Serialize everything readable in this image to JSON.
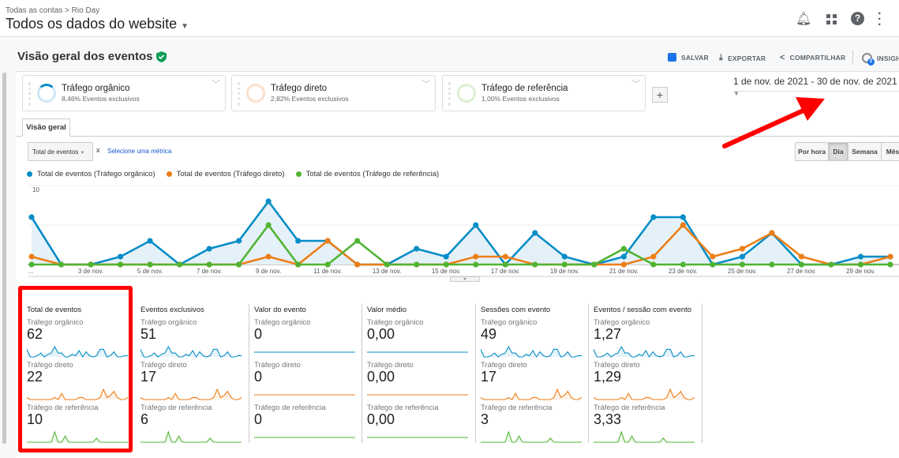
{
  "header": {
    "breadcrumb_root": "Todas as contas",
    "breadcrumb_sep": ">",
    "breadcrumb_account": "Rio Day",
    "view_title": "Todos os dados do website"
  },
  "page": {
    "title": "Visão geral dos eventos",
    "actions": {
      "save": "SALVAR",
      "export": "EXPORTAR",
      "share": "COMPARTILHAR",
      "insights": "INSIGHTS",
      "insights_badge": "2"
    }
  },
  "segments": [
    {
      "name": "Tráfego orgânico",
      "sub": "8,46% Eventos exclusivos",
      "color": "#058dc7"
    },
    {
      "name": "Tráfego direto",
      "sub": "2,82% Eventos exclusivos",
      "color": "#ed7e17"
    },
    {
      "name": "Tráfego de referência",
      "sub": "1,00% Eventos exclusivos",
      "color": "#50b432"
    }
  ],
  "add_segment": "+",
  "date_range": "1 de nov. de 2021 - 30 de nov. de 2021",
  "tab": "Visão geral",
  "metric_select": "Total de eventos",
  "metric_remove": "x",
  "metric_add": "Selecione uma métrica",
  "periods": [
    "Por hora",
    "Dia",
    "Semana",
    "Mês"
  ],
  "chart_data": {
    "type": "line",
    "ylim": [
      0,
      10
    ],
    "yticks": [
      "10",
      "5"
    ],
    "x": [
      1,
      2,
      3,
      4,
      5,
      6,
      7,
      8,
      9,
      10,
      11,
      12,
      13,
      14,
      15,
      16,
      17,
      18,
      19,
      20,
      21,
      22,
      23,
      24,
      25,
      26,
      27,
      28,
      29,
      30
    ],
    "xticklabels": [
      "...",
      "3 de nov.",
      "5 de nov.",
      "7 de nov.",
      "9 de nov.",
      "11 de nov.",
      "13 de nov.",
      "15 de nov.",
      "17 de nov.",
      "19 de nov.",
      "21 de nov.",
      "23 de nov.",
      "25 de nov.",
      "27 de nov.",
      "29 de nov."
    ],
    "series": [
      {
        "name": "Total de eventos (Tráfego orgânico)",
        "color": "#058dc7",
        "values": [
          6,
          0,
          0,
          1,
          3,
          0,
          2,
          3,
          8,
          3,
          3,
          0,
          0,
          2,
          1,
          5,
          0,
          4,
          1,
          0,
          1,
          6,
          6,
          0,
          1,
          4,
          0,
          0,
          1,
          1
        ]
      },
      {
        "name": "Total de eventos (Tráfego direto)",
        "color": "#ed7e17",
        "values": [
          1,
          0,
          0,
          0,
          0,
          0,
          0,
          0,
          1,
          0,
          3,
          0,
          0,
          0,
          0,
          1,
          1,
          0,
          0,
          0,
          0,
          1,
          5,
          1,
          2,
          4,
          1,
          0,
          0,
          1
        ]
      },
      {
        "name": "Total de eventos (Tráfego de referência)",
        "color": "#50b432",
        "values": [
          0,
          0,
          0,
          0,
          0,
          0,
          0,
          0,
          5,
          0,
          0,
          3,
          0,
          0,
          0,
          0,
          0,
          0,
          0,
          0,
          2,
          0,
          0,
          0,
          0,
          0,
          0,
          0,
          0,
          0
        ]
      }
    ]
  },
  "scorecards": {
    "row_labels": [
      "Tráfego orgânico",
      "Tráfego direto",
      "Tráfego de referência"
    ],
    "columns": [
      {
        "title": "Total de eventos",
        "values": [
          "62",
          "22",
          "10"
        ],
        "flat": false
      },
      {
        "title": "Eventos exclusivos",
        "values": [
          "51",
          "17",
          "6"
        ],
        "flat": false
      },
      {
        "title": "Valor do evento",
        "values": [
          "0",
          "0",
          "0"
        ],
        "flat": true
      },
      {
        "title": "Valor médio",
        "values": [
          "0,00",
          "0,00",
          "0,00"
        ],
        "flat": true
      },
      {
        "title": "Sessões com evento",
        "values": [
          "49",
          "17",
          "3"
        ],
        "flat": false
      },
      {
        "title": "Eventos / sessão com evento",
        "values": [
          "1,27",
          "1,29",
          "3,33"
        ],
        "flat": false
      }
    ]
  }
}
